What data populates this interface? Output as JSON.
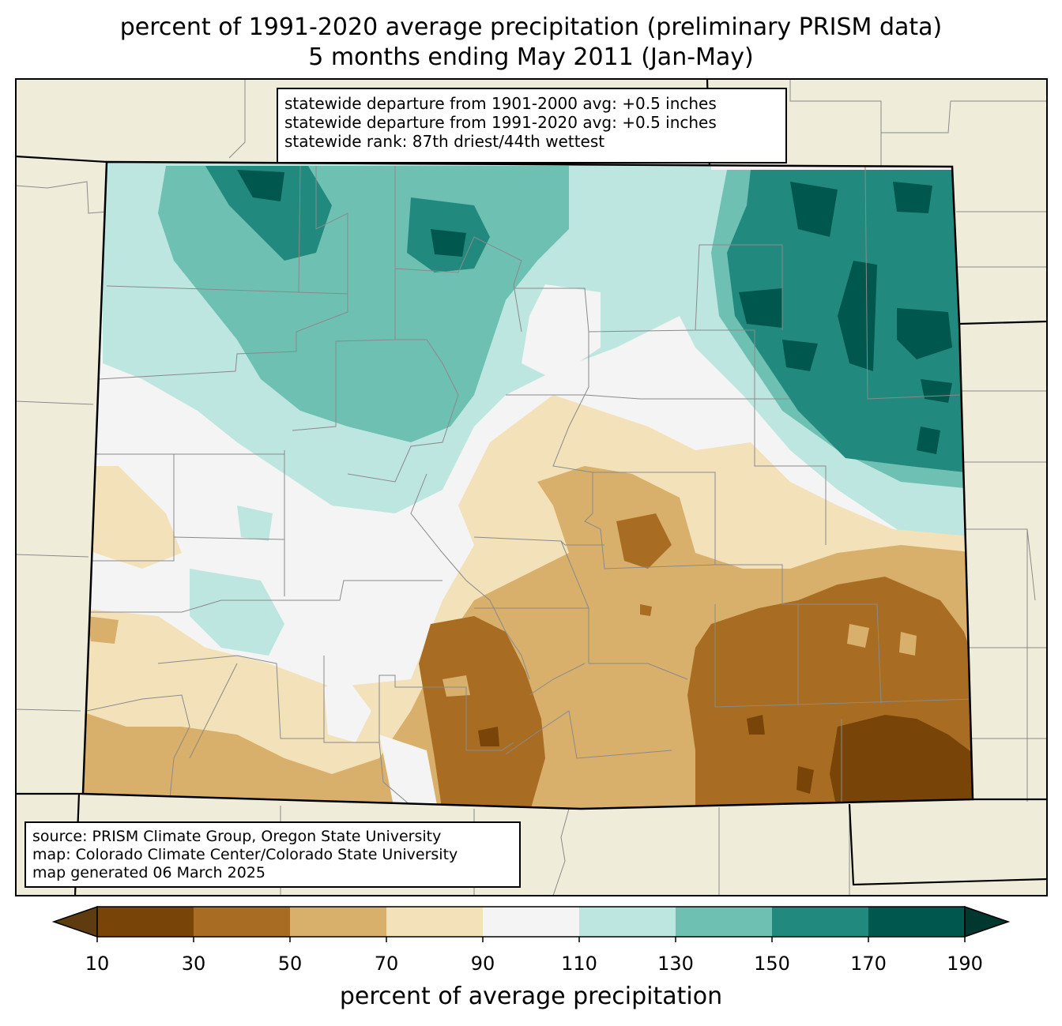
{
  "title": {
    "line1": "percent of 1991-2020 average precipitation (preliminary PRISM data)",
    "line2": "5 months ending May 2011 (Jan-May)"
  },
  "stats": {
    "line1": "statewide departure from 1901-2000 avg: +0.5 inches",
    "line2": "statewide departure from 1991-2020 avg: +0.5 inches",
    "line3": "statewide rank: 87th driest/44th wettest"
  },
  "source": {
    "line1": "source: PRISM Climate Group, Oregon State University",
    "line2": "map: Colorado Climate Center/Colorado State University",
    "line3": "map generated 06 March 2025"
  },
  "colorbar": {
    "label": "percent of average precipitation",
    "ticks": [
      "10",
      "30",
      "50",
      "70",
      "90",
      "110",
      "130",
      "150",
      "170",
      "190"
    ],
    "colors": [
      "#5e3c10",
      "#794408",
      "#a86d22",
      "#d8b06b",
      "#f3e2b9",
      "#f3f4f3",
      "#bde6e0",
      "#6ec0b3",
      "#21897e",
      "#00574d",
      "#00382f"
    ]
  },
  "colors": {
    "land_outside": "#efedda",
    "county_border": "#8a8a8a",
    "state_border": "#000000"
  }
}
